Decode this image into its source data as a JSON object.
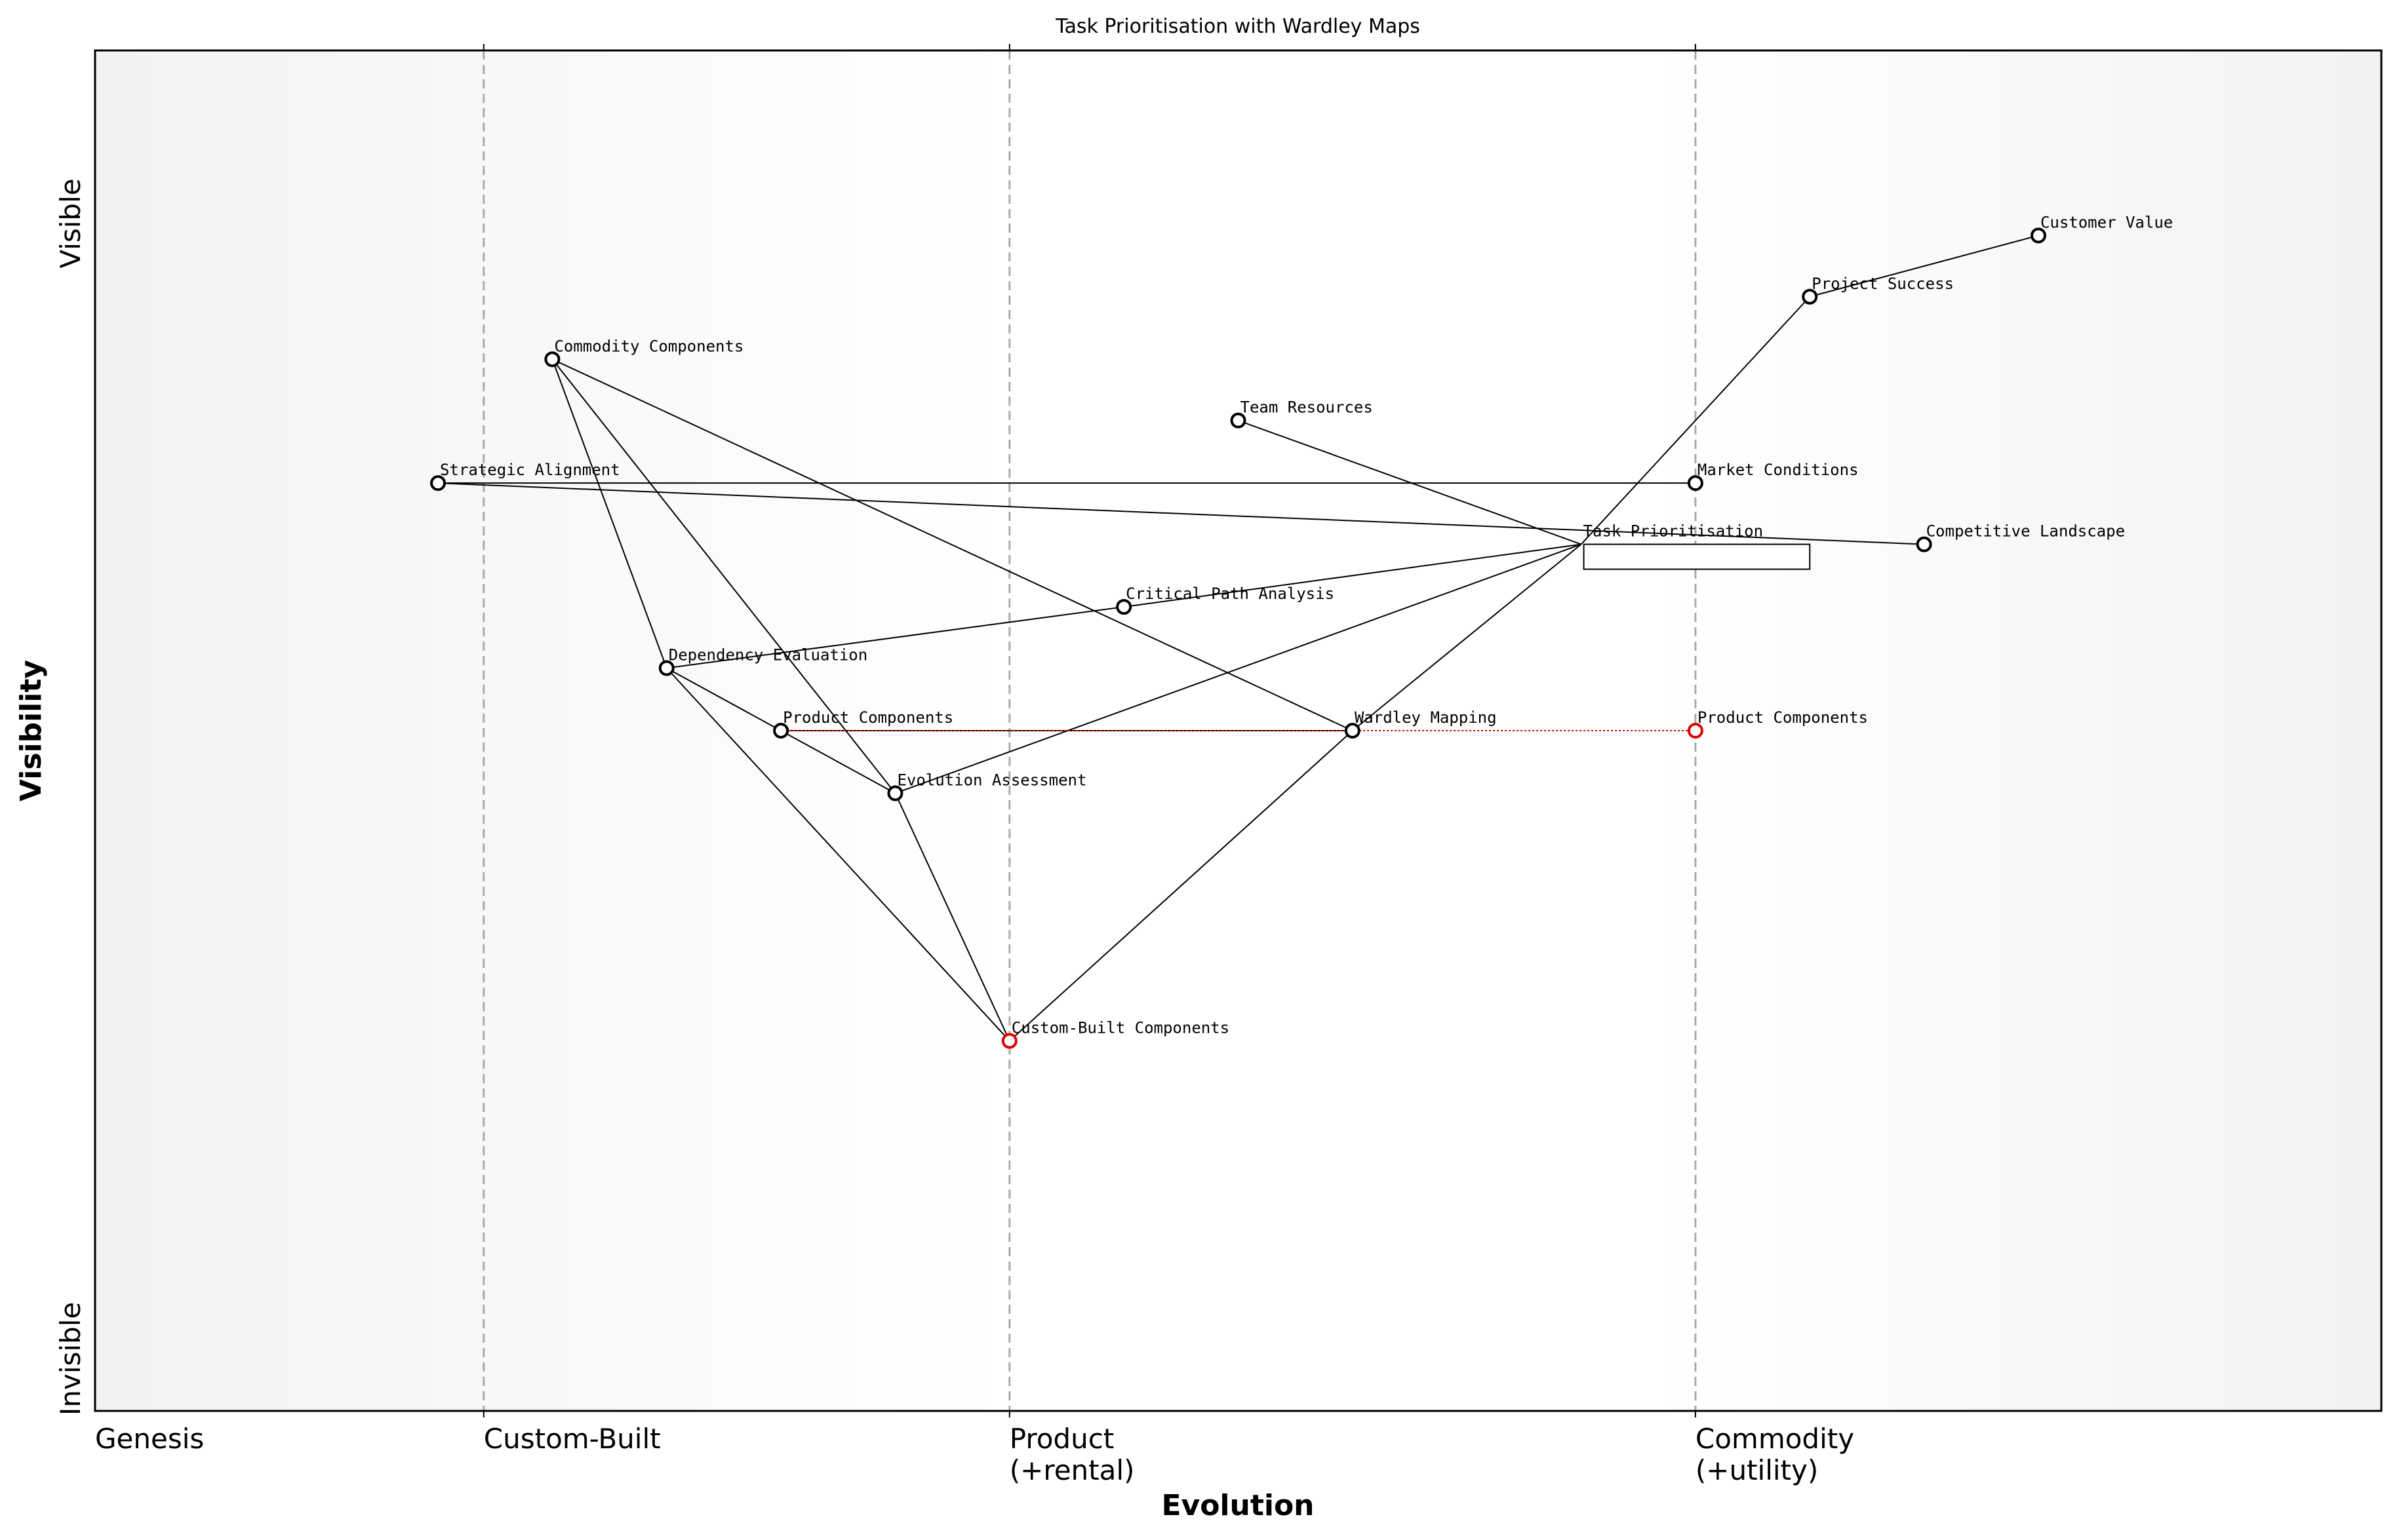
{
  "chart_data": {
    "type": "wardley",
    "title": "Task Prioritisation with Wardley Maps",
    "x_label": "Evolution",
    "y_label": "Visibility",
    "y_top_label": "Visible",
    "y_bottom_label": "Invisible",
    "xlim": [
      0,
      1
    ],
    "ylim": [
      0,
      1
    ],
    "xticks": [
      {
        "value": 0,
        "label": "Genesis"
      },
      {
        "value": 0.17,
        "label": "Custom-Built"
      },
      {
        "value": 0.4,
        "label": "Product\n(+rental)"
      },
      {
        "value": 0.7,
        "label": "Commodity\n(+utility)"
      }
    ],
    "nodes": [
      {
        "name": "Customer Value",
        "evolution": 0.85,
        "visibility": 0.864,
        "color": "#000000"
      },
      {
        "name": "Project Success",
        "evolution": 0.75,
        "visibility": 0.819,
        "color": "#000000"
      },
      {
        "name": "Commodity Components",
        "evolution": 0.2,
        "visibility": 0.773,
        "color": "#000000"
      },
      {
        "name": "Team Resources",
        "evolution": 0.5,
        "visibility": 0.728,
        "color": "#000000"
      },
      {
        "name": "Strategic Alignment",
        "evolution": 0.15,
        "visibility": 0.682,
        "color": "#000000"
      },
      {
        "name": "Market Conditions",
        "evolution": 0.7,
        "visibility": 0.682,
        "color": "#000000"
      },
      {
        "name": "Task Prioritisation",
        "evolution": 0.65,
        "visibility": 0.637,
        "pipeline": [
          0.65,
          0.75
        ]
      },
      {
        "name": "Competitive Landscape",
        "evolution": 0.8,
        "visibility": 0.637,
        "color": "#000000"
      },
      {
        "name": "Critical Path Analysis",
        "evolution": 0.45,
        "visibility": 0.591,
        "color": "#000000"
      },
      {
        "name": "Dependency Evaluation",
        "evolution": 0.25,
        "visibility": 0.546,
        "color": "#000000"
      },
      {
        "name": "Product Components",
        "evolution": 0.3,
        "visibility": 0.5,
        "color": "#000000"
      },
      {
        "name": "Wardley Mapping",
        "evolution": 0.55,
        "visibility": 0.5,
        "color": "#000000"
      },
      {
        "name": "Evolution Assessment",
        "evolution": 0.35,
        "visibility": 0.454,
        "color": "#000000"
      },
      {
        "name": "Custom-Built Components",
        "evolution": 0.4,
        "visibility": 0.272,
        "color": "#dd0000"
      }
    ],
    "links": [
      [
        "Project Success",
        "Customer Value"
      ],
      [
        "Task Prioritisation",
        "Project Success"
      ],
      [
        "Commodity Components",
        "Dependency Evaluation"
      ],
      [
        "Commodity Components",
        "Evolution Assessment"
      ],
      [
        "Commodity Components",
        "Wardley Mapping"
      ],
      [
        "Team Resources",
        "Task Prioritisation"
      ],
      [
        "Strategic Alignment",
        "Market Conditions"
      ],
      [
        "Strategic Alignment",
        "Competitive Landscape"
      ],
      [
        "Dependency Evaluation",
        "Critical Path Analysis"
      ],
      [
        "Critical Path Analysis",
        "Task Prioritisation"
      ],
      [
        "Evolution Assessment",
        "Task Prioritisation"
      ],
      [
        "Task Prioritisation",
        "Wardley Mapping"
      ],
      [
        "Wardley Mapping",
        "Custom-Built Components"
      ],
      [
        "Dependency Evaluation",
        "Product Components"
      ],
      [
        "Dependency Evaluation",
        "Custom-Built Components"
      ],
      [
        "Product Components",
        "Evolution Assessment"
      ],
      [
        "Evolution Assessment",
        "Custom-Built Components"
      ],
      [
        "Product Components",
        "Wardley Mapping"
      ]
    ],
    "evolve": [
      {
        "name": "Product Components",
        "to": 0.7,
        "color": "#dd0000"
      }
    ]
  }
}
